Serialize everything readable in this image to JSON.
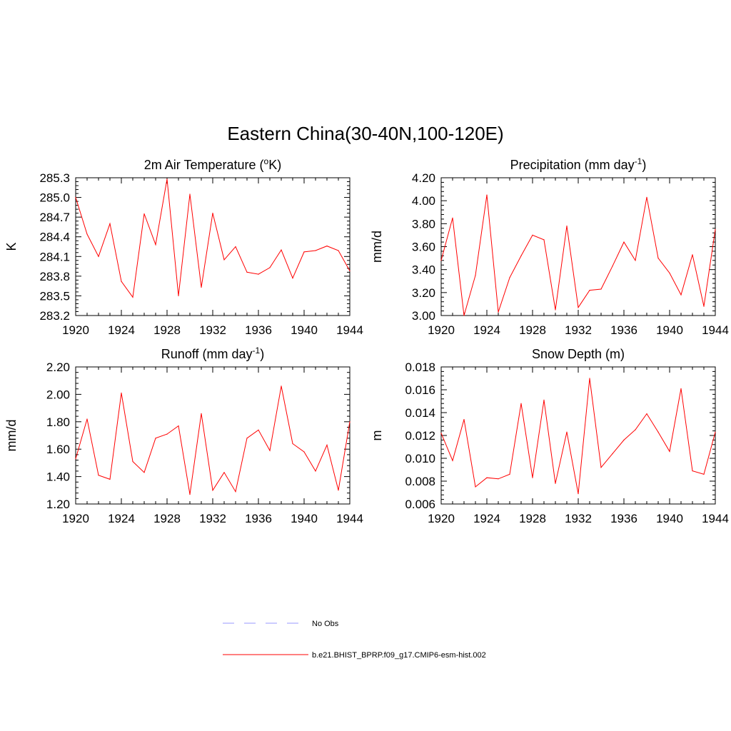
{
  "figure": {
    "title": "Eastern China(30-40N,100-120E)"
  },
  "legend": {
    "items": [
      {
        "label": "No Obs",
        "color": "#9999ff",
        "style": "dashed"
      },
      {
        "label": "b.e21.BHIST_BPRP.f09_g17.CMIP6-esm-hist.002",
        "color": "#ff0000",
        "style": "solid"
      }
    ]
  },
  "chart_data": [
    {
      "type": "line",
      "title_main": "2m Air Temperature (",
      "title_sup": "o",
      "title_tail": "K)",
      "ylabel": "K",
      "x": [
        1920,
        1921,
        1922,
        1923,
        1924,
        1925,
        1926,
        1927,
        1928,
        1929,
        1930,
        1931,
        1932,
        1933,
        1934,
        1935,
        1936,
        1937,
        1938,
        1939,
        1940,
        1941,
        1942,
        1943,
        1944
      ],
      "values": [
        285.0,
        284.44,
        284.1,
        284.6,
        283.72,
        283.48,
        284.75,
        284.28,
        285.28,
        283.5,
        285.05,
        283.63,
        284.76,
        284.05,
        284.25,
        283.86,
        283.83,
        283.93,
        284.2,
        283.77,
        284.17,
        284.19,
        284.26,
        284.19,
        283.88
      ],
      "xlim": [
        1920,
        1944
      ],
      "ylim": [
        283.2,
        285.3
      ],
      "xticks": [
        "1920",
        "1924",
        "1928",
        "1932",
        "1936",
        "1940",
        "1944"
      ],
      "yticks": [
        "283.2",
        "283.5",
        "283.8",
        "284.1",
        "284.4",
        "284.7",
        "285.0",
        "285.3"
      ],
      "series_color": "#ff0000"
    },
    {
      "type": "line",
      "title_main": "Precipitation (mm day",
      "title_sup": "-1",
      "title_tail": ")",
      "ylabel": "mm/d",
      "x": [
        1920,
        1921,
        1922,
        1923,
        1924,
        1925,
        1926,
        1927,
        1928,
        1929,
        1930,
        1931,
        1932,
        1933,
        1934,
        1935,
        1936,
        1937,
        1938,
        1939,
        1940,
        1941,
        1942,
        1943,
        1944
      ],
      "values": [
        3.48,
        3.85,
        3.0,
        3.35,
        4.05,
        3.03,
        3.33,
        3.52,
        3.7,
        3.66,
        3.05,
        3.78,
        3.07,
        3.22,
        3.23,
        3.43,
        3.64,
        3.48,
        4.03,
        3.5,
        3.37,
        3.18,
        3.53,
        3.08,
        3.75
      ],
      "xlim": [
        1920,
        1944
      ],
      "ylim": [
        3.0,
        4.2
      ],
      "xticks": [
        "1920",
        "1924",
        "1928",
        "1932",
        "1936",
        "1940",
        "1944"
      ],
      "yticks": [
        "3.00",
        "3.20",
        "3.40",
        "3.60",
        "3.80",
        "4.00",
        "4.20"
      ],
      "series_color": "#ff0000"
    },
    {
      "type": "line",
      "title_main": "Runoff (mm day",
      "title_sup": "-1",
      "title_tail": ")",
      "ylabel": "mm/d",
      "x": [
        1920,
        1921,
        1922,
        1923,
        1924,
        1925,
        1926,
        1927,
        1928,
        1929,
        1930,
        1931,
        1932,
        1933,
        1934,
        1935,
        1936,
        1937,
        1938,
        1939,
        1940,
        1941,
        1942,
        1943,
        1944
      ],
      "values": [
        1.53,
        1.82,
        1.41,
        1.38,
        2.01,
        1.51,
        1.43,
        1.68,
        1.71,
        1.77,
        1.27,
        1.86,
        1.3,
        1.43,
        1.29,
        1.68,
        1.74,
        1.59,
        2.06,
        1.64,
        1.58,
        1.44,
        1.63,
        1.3,
        1.8
      ],
      "xlim": [
        1920,
        1944
      ],
      "ylim": [
        1.2,
        2.2
      ],
      "xticks": [
        "1920",
        "1924",
        "1928",
        "1932",
        "1936",
        "1940",
        "1944"
      ],
      "yticks": [
        "1.20",
        "1.40",
        "1.60",
        "1.80",
        "2.00",
        "2.20"
      ],
      "series_color": "#ff0000"
    },
    {
      "type": "line",
      "title_main": "Snow Depth (m)",
      "title_sup": "",
      "title_tail": "",
      "ylabel": "m",
      "x": [
        1920,
        1921,
        1922,
        1923,
        1924,
        1925,
        1926,
        1927,
        1928,
        1929,
        1930,
        1931,
        1932,
        1933,
        1934,
        1935,
        1936,
        1937,
        1938,
        1939,
        1940,
        1941,
        1942,
        1943,
        1944
      ],
      "values": [
        0.0122,
        0.0098,
        0.0134,
        0.0075,
        0.0083,
        0.0082,
        0.0086,
        0.0148,
        0.0083,
        0.0151,
        0.0078,
        0.0123,
        0.0069,
        0.017,
        0.0092,
        0.0104,
        0.0116,
        0.0125,
        0.0139,
        0.0123,
        0.0106,
        0.0161,
        0.0089,
        0.0086,
        0.0123
      ],
      "xlim": [
        1920,
        1944
      ],
      "ylim": [
        0.006,
        0.018
      ],
      "xticks": [
        "1920",
        "1924",
        "1928",
        "1932",
        "1936",
        "1940",
        "1944"
      ],
      "yticks": [
        "0.006",
        "0.008",
        "0.010",
        "0.012",
        "0.014",
        "0.016",
        "0.018"
      ],
      "series_color": "#ff0000"
    }
  ]
}
